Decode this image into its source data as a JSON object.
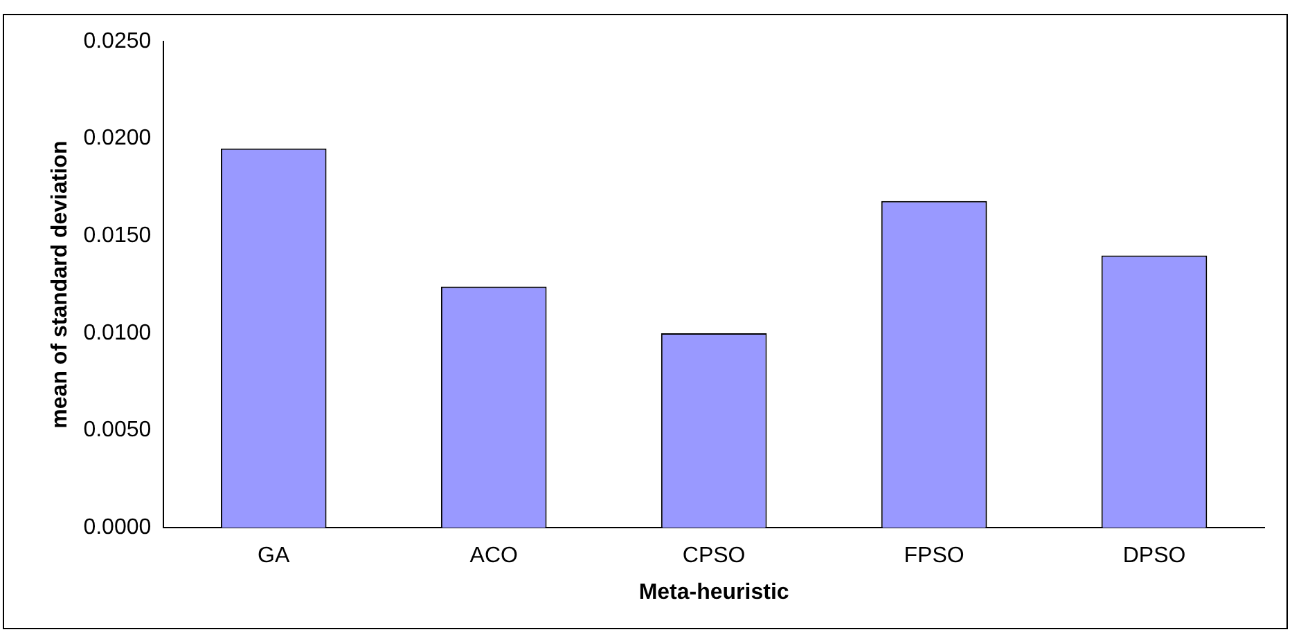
{
  "chart_data": {
    "type": "bar",
    "xlabel": "Meta-heuristic",
    "ylabel": "mean of standard deviation",
    "categories": [
      "GA",
      "ACO",
      "CPSO",
      "FPSO",
      "DPSO"
    ],
    "values": [
      0.0195,
      0.0124,
      0.01,
      0.0168,
      0.014
    ],
    "color": "#9999ff",
    "ylim": [
      0,
      0.025
    ],
    "yticks": [
      {
        "value": 0,
        "label": "0.0000"
      },
      {
        "value": 0.005,
        "label": "0.0050"
      },
      {
        "value": 0.01,
        "label": "0.0100"
      },
      {
        "value": 0.015,
        "label": "0.0150"
      },
      {
        "value": 0.02,
        "label": "0.0200"
      },
      {
        "value": 0.025,
        "label": "0.0250"
      }
    ],
    "grid": false,
    "legend": false
  }
}
